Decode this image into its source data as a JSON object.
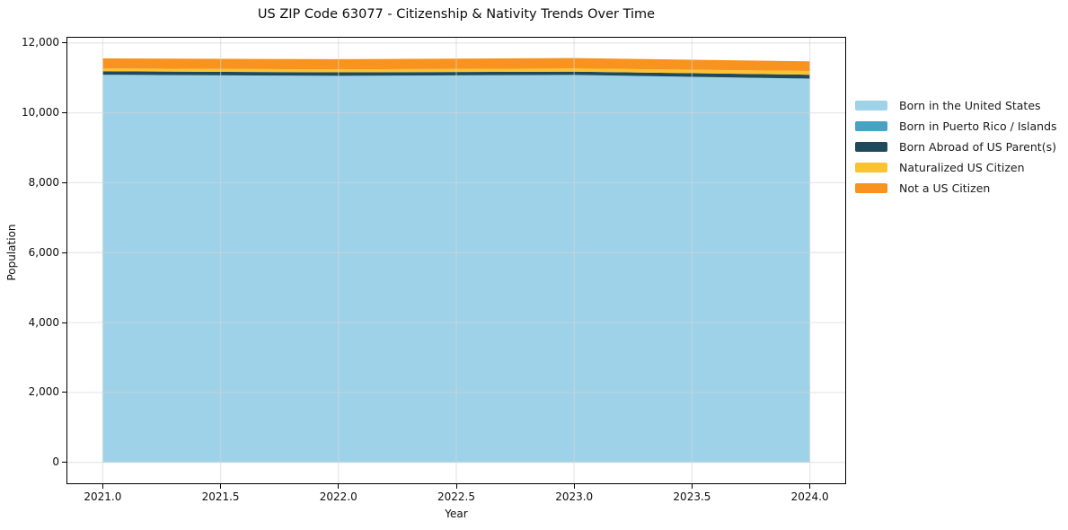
{
  "chart_data": {
    "type": "area",
    "stacked": true,
    "title": "US ZIP Code 63077 - Citizenship & Nativity Trends Over Time",
    "xlabel": "Year",
    "ylabel": "Population",
    "x": [
      2021,
      2022,
      2023,
      2024
    ],
    "series": [
      {
        "name": "Born in the United States",
        "color": "#9ed2e8",
        "values": [
          11090,
          11060,
          11085,
          10980
        ]
      },
      {
        "name": "Born in Puerto Rico / Islands",
        "color": "#47a3c4",
        "values": [
          0,
          0,
          0,
          0
        ]
      },
      {
        "name": "Born Abroad of US Parent(s)",
        "color": "#1f4a5c",
        "values": [
          100,
          100,
          95,
          110
        ]
      },
      {
        "name": "Naturalized US Citizen",
        "color": "#fcc330",
        "values": [
          80,
          85,
          90,
          110
        ]
      },
      {
        "name": "Not a US Citizen",
        "color": "#f7931e",
        "values": [
          290,
          290,
          300,
          275
        ]
      }
    ],
    "xlim": [
      2020.85,
      2024.15
    ],
    "ylim": [
      -600,
      12150
    ],
    "x_ticks": {
      "values": [
        2021.0,
        2021.5,
        2022.0,
        2022.5,
        2023.0,
        2023.5,
        2024.0
      ],
      "labels": [
        "2021.0",
        "2021.5",
        "2022.0",
        "2022.5",
        "2023.0",
        "2023.5",
        "2024.0"
      ]
    },
    "y_ticks": {
      "values": [
        0,
        2000,
        4000,
        6000,
        8000,
        10000,
        12000
      ],
      "labels": [
        "0",
        "2,000",
        "4,000",
        "6,000",
        "8,000",
        "10,000",
        "12,000"
      ]
    },
    "grid": true,
    "legend_position": "right",
    "colors": {
      "background": "#ffffff",
      "axis": "#000000",
      "grid": "#d9d9d9",
      "text": "#111111"
    }
  }
}
